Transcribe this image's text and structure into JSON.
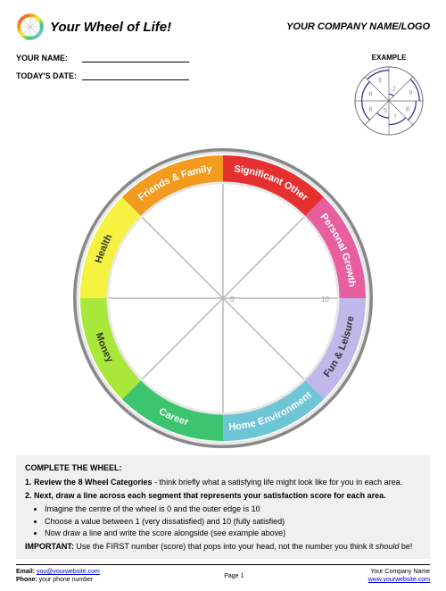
{
  "header": {
    "title": "Your Wheel of Life!",
    "company": "YOUR COMPANY NAME/LOGO"
  },
  "form": {
    "name_label": "YOUR NAME:",
    "date_label": "TODAY'S DATE:"
  },
  "example": {
    "title": "EXAMPLE",
    "scores": [
      2,
      9,
      8,
      7,
      5,
      8,
      8,
      9
    ],
    "stroke": "#333399",
    "number_color": "#888888"
  },
  "wheel": {
    "type": "pie-wheel",
    "center_label_0": "0",
    "center_label_10": "10",
    "ring_inner_radius": 130,
    "ring_outer_radius": 160,
    "hub_radius": 128,
    "spoke_color": "#b8b8b8",
    "segments": [
      {
        "label": "Significant Other",
        "color": "#e63030",
        "text_dark": false
      },
      {
        "label": "Personal Growth",
        "color": "#e85fa0",
        "text_dark": false
      },
      {
        "label": "Fun & Leisure",
        "color": "#c0b8e8",
        "text_dark": true
      },
      {
        "label": "Home Environment",
        "color": "#6ec5d6",
        "text_dark": false
      },
      {
        "label": "Career",
        "color": "#3cc46e",
        "text_dark": false
      },
      {
        "label": "Money",
        "color": "#a9e83a",
        "text_dark": true
      },
      {
        "label": "Health",
        "color": "#f5f242",
        "text_dark": true
      },
      {
        "label": "Friends & Family",
        "color": "#f29b1f",
        "text_dark": false
      }
    ],
    "bevel_outer": "#888888",
    "bevel_inner": "#e8e8e8"
  },
  "instructions": {
    "heading": "COMPLETE THE WHEEL:",
    "step1_bold": "1. Review the 8 Wheel Categories",
    "step1_rest": " - think briefly what a satisfying life might look like for you in each area.",
    "step2_bold": "2. Next, draw a line across each segment that represents your satisfaction score for each area.",
    "bullets": [
      "Imagine the centre of the wheel is 0 and the outer edge is 10",
      "Choose a value between 1 (very dissatisfied) and 10 (fully satisfied)",
      "Now draw a line and write the score alongside (see example above)"
    ],
    "important_label": "IMPORTANT:",
    "important_text_1": " Use the FIRST number (score) that pops into your head, not the number you think it ",
    "important_italic": "should",
    "important_text_2": " be!"
  },
  "footer": {
    "email_label": "Email: ",
    "email_link": "you@yourwebsite.com",
    "phone_label": "Phone: ",
    "phone_value": "your phone number",
    "page": "Page 1",
    "company": "Your Company Name",
    "website": "www.yourwebsite.com"
  }
}
